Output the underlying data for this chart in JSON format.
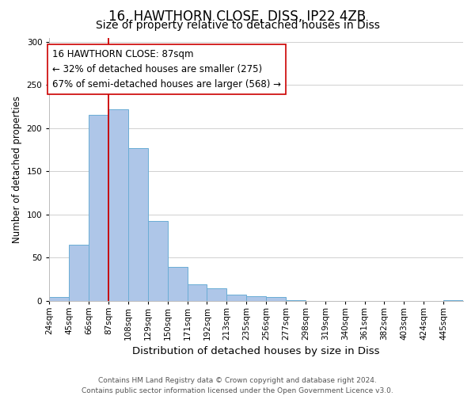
{
  "title": "16, HAWTHORN CLOSE, DISS, IP22 4ZB",
  "subtitle": "Size of property relative to detached houses in Diss",
  "xlabel": "Distribution of detached houses by size in Diss",
  "ylabel": "Number of detached properties",
  "bin_labels": [
    "24sqm",
    "45sqm",
    "66sqm",
    "87sqm",
    "108sqm",
    "129sqm",
    "150sqm",
    "171sqm",
    "192sqm",
    "213sqm",
    "235sqm",
    "256sqm",
    "277sqm",
    "298sqm",
    "319sqm",
    "340sqm",
    "361sqm",
    "382sqm",
    "403sqm",
    "424sqm",
    "445sqm"
  ],
  "bin_edges": [
    0,
    1,
    2,
    3,
    4,
    5,
    6,
    7,
    8,
    9,
    10,
    11,
    12,
    13,
    14,
    15,
    16,
    17,
    18,
    19,
    20,
    21
  ],
  "values": [
    4,
    65,
    215,
    222,
    177,
    92,
    39,
    19,
    14,
    7,
    5,
    4,
    1,
    0,
    0,
    0,
    0,
    0,
    0,
    0,
    1
  ],
  "bar_color": "#aec6e8",
  "bar_edge_color": "#6aadd5",
  "property_bin": 3,
  "vline_color": "#cc0000",
  "annotation_line1": "16 HAWTHORN CLOSE: 87sqm",
  "annotation_line2": "← 32% of detached houses are smaller (275)",
  "annotation_line3": "67% of semi-detached houses are larger (568) →",
  "annotation_box_color": "white",
  "annotation_box_edge": "#cc0000",
  "ylim": [
    0,
    305
  ],
  "yticks": [
    0,
    50,
    100,
    150,
    200,
    250,
    300
  ],
  "grid_color": "#d0d0d0",
  "footer_line1": "Contains HM Land Registry data © Crown copyright and database right 2024.",
  "footer_line2": "Contains public sector information licensed under the Open Government Licence v3.0.",
  "title_fontsize": 12,
  "subtitle_fontsize": 10,
  "xlabel_fontsize": 9.5,
  "ylabel_fontsize": 8.5,
  "tick_fontsize": 7.5,
  "footer_fontsize": 6.5,
  "annotation_fontsize": 8.5
}
